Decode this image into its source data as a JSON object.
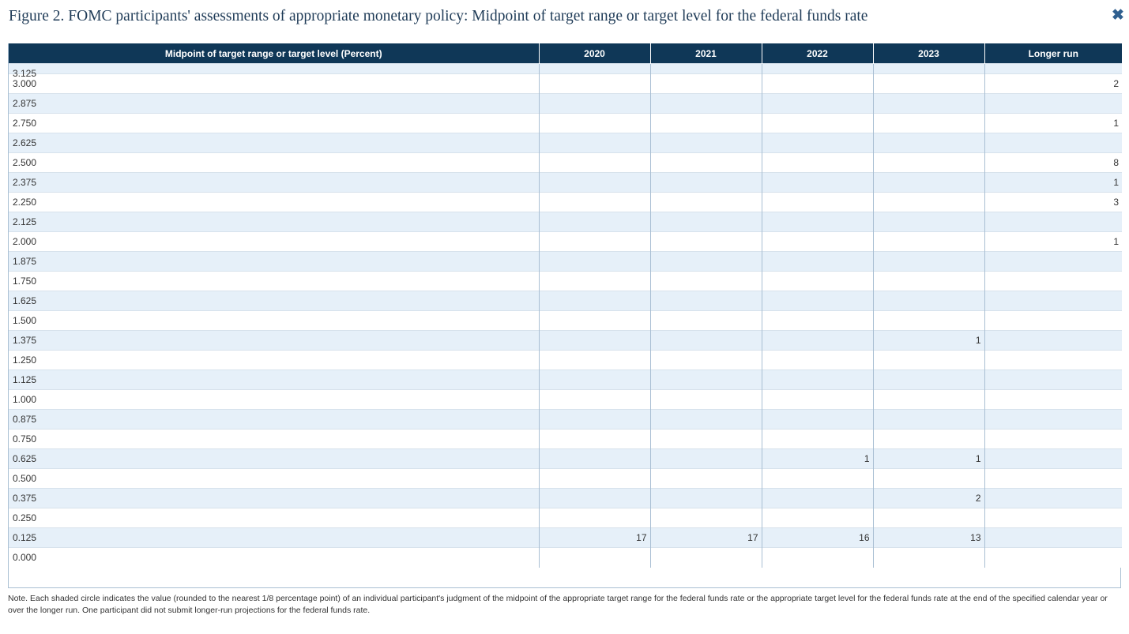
{
  "title": "Figure 2. FOMC participants' assessments of appropriate monetary policy: Midpoint of target range or target level for the federal funds rate",
  "close_icon": "close-icon",
  "table": {
    "headers": [
      "Midpoint of target range or target level (Percent)",
      "2020",
      "2021",
      "2022",
      "2023",
      "Longer run"
    ],
    "partial_top_label": "3.125",
    "rows": [
      [
        "3.000",
        "",
        "",
        "",
        "",
        "2"
      ],
      [
        "2.875",
        "",
        "",
        "",
        "",
        ""
      ],
      [
        "2.750",
        "",
        "",
        "",
        "",
        "1"
      ],
      [
        "2.625",
        "",
        "",
        "",
        "",
        ""
      ],
      [
        "2.500",
        "",
        "",
        "",
        "",
        "8"
      ],
      [
        "2.375",
        "",
        "",
        "",
        "",
        "1"
      ],
      [
        "2.250",
        "",
        "",
        "",
        "",
        "3"
      ],
      [
        "2.125",
        "",
        "",
        "",
        "",
        ""
      ],
      [
        "2.000",
        "",
        "",
        "",
        "",
        "1"
      ],
      [
        "1.875",
        "",
        "",
        "",
        "",
        ""
      ],
      [
        "1.750",
        "",
        "",
        "",
        "",
        ""
      ],
      [
        "1.625",
        "",
        "",
        "",
        "",
        ""
      ],
      [
        "1.500",
        "",
        "",
        "",
        "",
        ""
      ],
      [
        "1.375",
        "",
        "",
        "",
        "1",
        ""
      ],
      [
        "1.250",
        "",
        "",
        "",
        "",
        ""
      ],
      [
        "1.125",
        "",
        "",
        "",
        "",
        ""
      ],
      [
        "1.000",
        "",
        "",
        "",
        "",
        ""
      ],
      [
        "0.875",
        "",
        "",
        "",
        "",
        ""
      ],
      [
        "0.750",
        "",
        "",
        "",
        "",
        ""
      ],
      [
        "0.625",
        "",
        "",
        "1",
        "1",
        ""
      ],
      [
        "0.500",
        "",
        "",
        "",
        "",
        ""
      ],
      [
        "0.375",
        "",
        "",
        "",
        "2",
        ""
      ],
      [
        "0.250",
        "",
        "",
        "",
        "",
        ""
      ],
      [
        "0.125",
        "17",
        "17",
        "16",
        "13",
        ""
      ],
      [
        "0.000",
        "",
        "",
        "",
        "",
        ""
      ]
    ]
  },
  "note": "Note. Each shaded circle indicates the value (rounded to the nearest 1/8 percentage point) of an individual participant's judgment of the midpoint of the appropriate target range for the federal funds rate or the appropriate target level for the federal funds rate at the end of the specified calendar year or over the longer run. One participant did not submit longer-run projections for the federal funds rate."
}
